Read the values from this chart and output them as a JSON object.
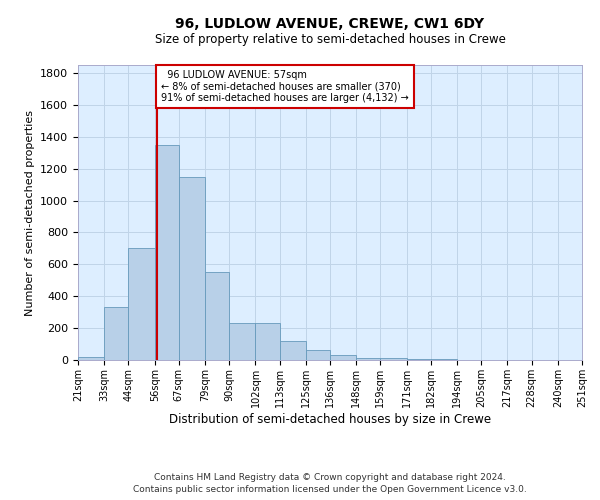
{
  "title": "96, LUDLOW AVENUE, CREWE, CW1 6DY",
  "subtitle": "Size of property relative to semi-detached houses in Crewe",
  "xlabel": "Distribution of semi-detached houses by size in Crewe",
  "ylabel": "Number of semi-detached properties",
  "property_label": "96 LUDLOW AVENUE: 57sqm",
  "smaller_pct": "8% of semi-detached houses are smaller (370)",
  "larger_pct": "91% of semi-detached houses are larger (4,132)",
  "property_size": 57,
  "annotation_line_color": "#cc0000",
  "bar_color": "#b8d0e8",
  "bar_edge_color": "#6699bb",
  "background_color": "#ffffff",
  "plot_bg_color": "#ddeeff",
  "grid_color": "#c0d4e8",
  "bin_edges": [
    21,
    33,
    44,
    56,
    67,
    79,
    90,
    102,
    113,
    125,
    136,
    148,
    159,
    171,
    182,
    194,
    205,
    217,
    228,
    240,
    251
  ],
  "bin_labels": [
    "21sqm",
    "33sqm",
    "44sqm",
    "56sqm",
    "67sqm",
    "79sqm",
    "90sqm",
    "102sqm",
    "113sqm",
    "125sqm",
    "136sqm",
    "148sqm",
    "159sqm",
    "171sqm",
    "182sqm",
    "194sqm",
    "205sqm",
    "217sqm",
    "228sqm",
    "240sqm",
    "251sqm"
  ],
  "counts": [
    20,
    330,
    700,
    1350,
    1150,
    550,
    230,
    230,
    120,
    60,
    30,
    15,
    12,
    8,
    5,
    3,
    2,
    1,
    1,
    1
  ],
  "ylim": [
    0,
    1850
  ],
  "yticks": [
    0,
    200,
    400,
    600,
    800,
    1000,
    1200,
    1400,
    1600,
    1800
  ],
  "footer1": "Contains HM Land Registry data © Crown copyright and database right 2024.",
  "footer2": "Contains public sector information licensed under the Open Government Licence v3.0."
}
